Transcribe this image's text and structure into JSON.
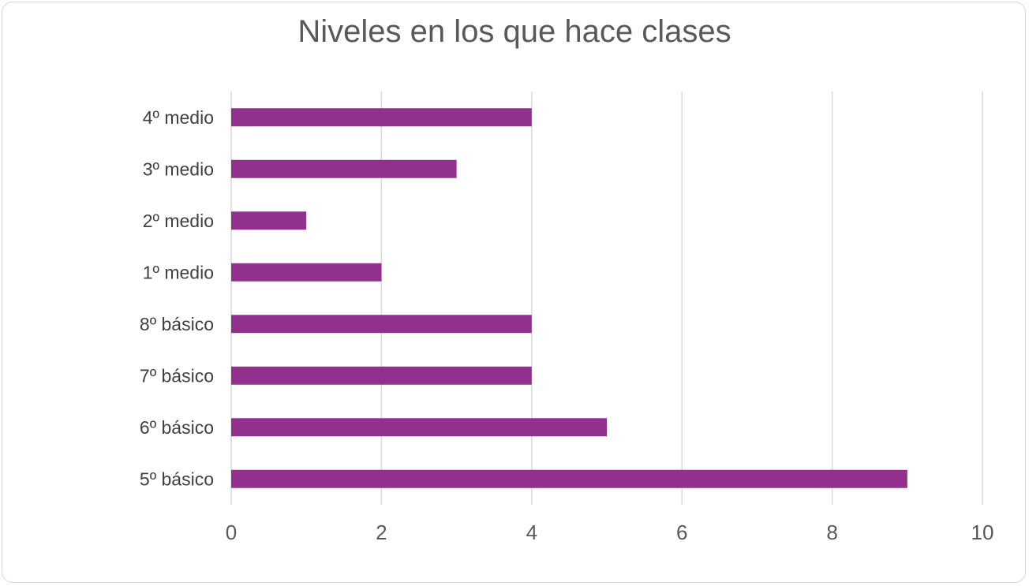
{
  "chart_data": {
    "type": "bar",
    "orientation": "horizontal",
    "title": "Niveles en los que hace clases",
    "xlabel": "",
    "ylabel": "",
    "categories": [
      "5º básico",
      "6º básico",
      "7º básico",
      "8º básico",
      "1º medio",
      "2º medio",
      "3º medio",
      "4º medio"
    ],
    "values": [
      9,
      5,
      4,
      4,
      2,
      1,
      3,
      4
    ],
    "xlim": [
      0,
      10
    ],
    "xticks": [
      0,
      2,
      4,
      6,
      8,
      10
    ],
    "grid": true,
    "legend": "none",
    "bar_color": "#92308D"
  }
}
